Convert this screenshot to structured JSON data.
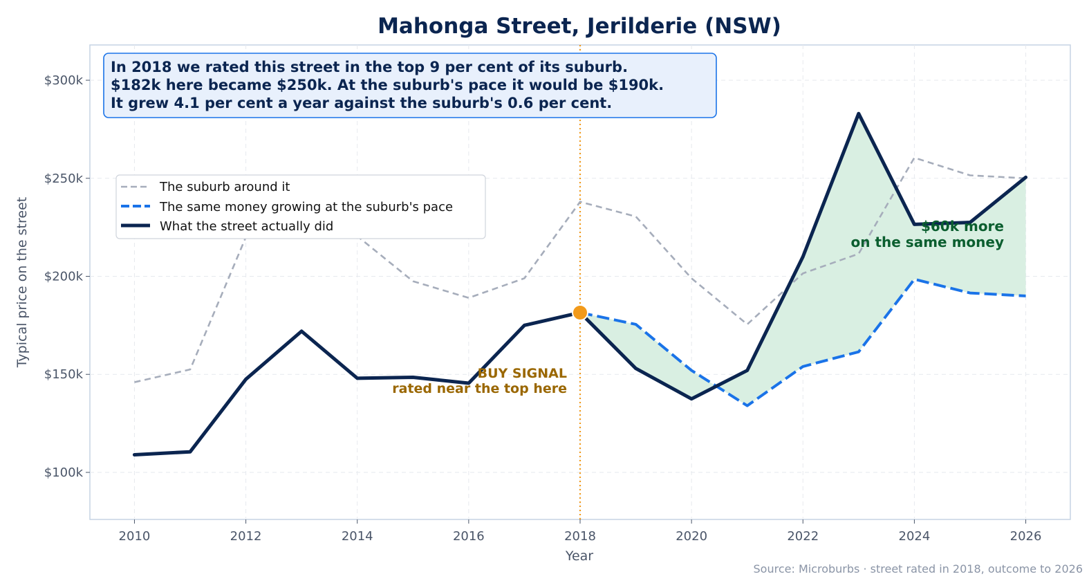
{
  "chart_data": {
    "type": "line",
    "title": "Mahonga Street, Jerilderie (NSW)",
    "xlabel": "Year",
    "ylabel": "Typical price on the street",
    "xlim": [
      2009.2,
      2026.8
    ],
    "ylim": [
      76000,
      318000
    ],
    "x_ticks": [
      2010,
      2012,
      2014,
      2016,
      2018,
      2020,
      2022,
      2024,
      2026
    ],
    "y_ticks": [
      100000,
      150000,
      200000,
      250000,
      300000
    ],
    "y_tick_labels": [
      "$100k",
      "$150k",
      "$200k",
      "$250k",
      "$300k"
    ],
    "grid": true,
    "legend_position": "upper-left",
    "x": [
      2010,
      2011,
      2012,
      2013,
      2014,
      2015,
      2016,
      2017,
      2018,
      2019,
      2020,
      2021,
      2022,
      2023,
      2024,
      2025,
      2026
    ],
    "series": [
      {
        "name": "The suburb around it",
        "style": "dashed",
        "color": "#a6adbb",
        "x": [
          2010,
          2011,
          2012,
          2013,
          2014,
          2015,
          2016,
          2017,
          2018,
          2019,
          2020,
          2021,
          2022,
          2023,
          2024,
          2025,
          2026
        ],
        "values": [
          146000,
          152500,
          220000,
          221000,
          220500,
          197500,
          189000,
          199000,
          238000,
          230500,
          199000,
          175500,
          201500,
          211500,
          260500,
          251500,
          250000
        ]
      },
      {
        "name": "The same money growing at the suburb's pace",
        "style": "dashed",
        "color": "#1a73e8",
        "x": [
          2018,
          2019,
          2020,
          2021,
          2022,
          2023,
          2024,
          2025,
          2026
        ],
        "values": [
          181500,
          175500,
          152000,
          134000,
          154000,
          161500,
          198500,
          191500,
          190000
        ]
      },
      {
        "name": "What the street actually did",
        "style": "solid",
        "color": "#0b2550",
        "x": [
          2010,
          2011,
          2012,
          2013,
          2014,
          2015,
          2016,
          2017,
          2018,
          2019,
          2020,
          2021,
          2022,
          2023,
          2024,
          2025,
          2026
        ],
        "values": [
          109000,
          110500,
          147500,
          172000,
          148000,
          148500,
          145500,
          175000,
          181500,
          153000,
          137500,
          152000,
          210000,
          283000,
          226500,
          227500,
          250500
        ]
      }
    ],
    "signal_year": 2018,
    "signal_value": 181500,
    "annotations": {
      "info_box_lines": [
        "In 2018 we rated this street in the top 9 per cent of its suburb.",
        "$182k here became $250k. At the suburb's pace it would be $190k.",
        "It grew 4.1 per cent a year against the suburb's 0.6 per cent."
      ],
      "buy_signal_lines": [
        "BUY SIGNAL",
        "rated near the top here"
      ],
      "gain_lines": [
        "$60k more",
        "on the same money"
      ],
      "source": "Source: Microburbs · street rated in 2018, outcome to 2026"
    },
    "colors": {
      "title": "#0b2550",
      "signal": "#f29a1a",
      "buy_text": "#9a6700",
      "gain_text": "#0b5e2f",
      "fill": "#d9efe2",
      "info_bg": "#e8f0fc",
      "info_border": "#1a73e8",
      "axis_frame": "#c5d3e3",
      "tick_text": "#4a5568",
      "source_text": "#8a94a6"
    }
  }
}
